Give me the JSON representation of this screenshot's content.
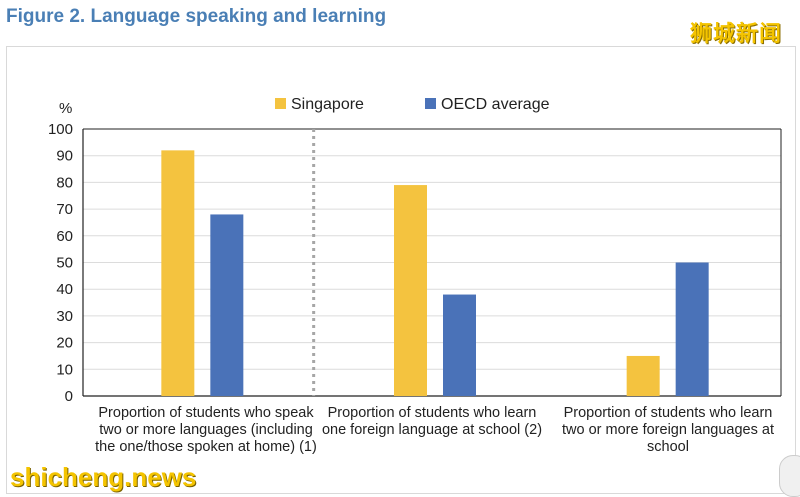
{
  "figure": {
    "title": "Figure 2. Language speaking and learning"
  },
  "watermarks": {
    "top": "狮城新闻",
    "bottom": "shicheng.news"
  },
  "colors": {
    "singapore": "#f4c33f",
    "oecd": "#4a72b8",
    "title": "#4a7fb5",
    "divider": "#a6a6a6"
  },
  "chart_data": {
    "type": "bar",
    "ylabel": "%",
    "ylim": [
      0,
      100
    ],
    "yticks": [
      0,
      10,
      20,
      30,
      40,
      50,
      60,
      70,
      80,
      90,
      100
    ],
    "grid": true,
    "legend_position": "top-center",
    "categories": [
      "Proportion of students who speak two or more languages (including the one/those spoken at home) (1)",
      "Proportion of students who learn one foreign language at school (2)",
      "Proportion of students who learn two or more foreign languages at school"
    ],
    "series": [
      {
        "name": "Singapore",
        "values": [
          92,
          79,
          15
        ]
      },
      {
        "name": "OECD average",
        "values": [
          68,
          38,
          50
        ]
      }
    ]
  }
}
